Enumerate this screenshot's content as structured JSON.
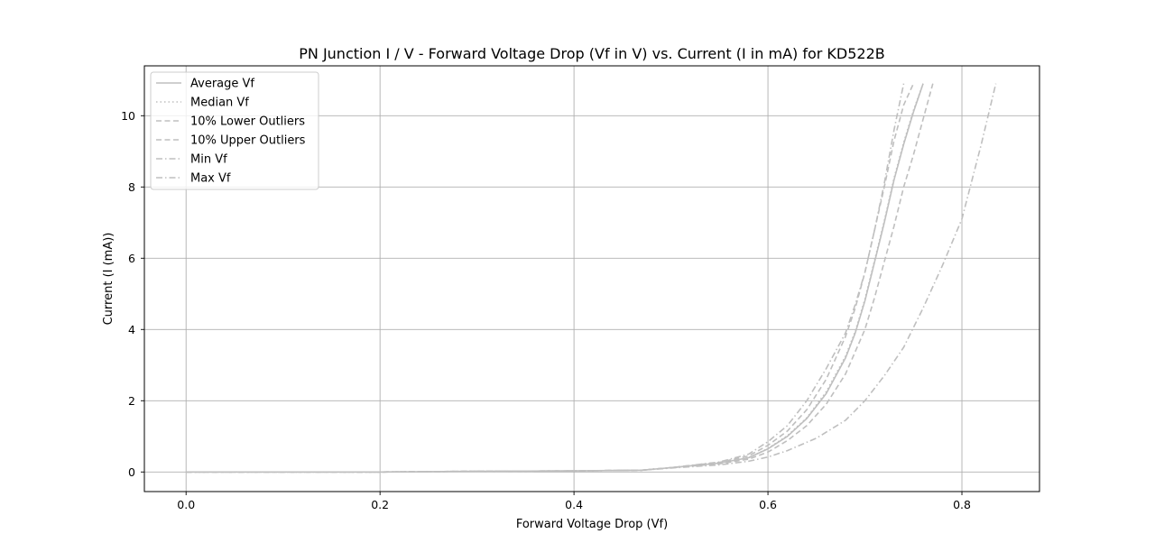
{
  "chart_data": {
    "type": "line",
    "title": "PN Junction I / V - Forward Voltage Drop (Vf in V) vs. Current (I in mA) for KD522B",
    "xlabel": "Forward Voltage Drop (Vf)",
    "ylabel": "Current (I (mA))",
    "xlim": [
      -0.043,
      0.88
    ],
    "ylim": [
      -0.55,
      11.4
    ],
    "xticks": [
      0.0,
      0.2,
      0.4,
      0.6,
      0.8
    ],
    "xtick_labels": [
      "0.0",
      "0.2",
      "0.4",
      "0.6",
      "0.8"
    ],
    "yticks": [
      0,
      2,
      4,
      6,
      8,
      10
    ],
    "ytick_labels": [
      "0",
      "2",
      "4",
      "6",
      "8",
      "10"
    ],
    "grid": true,
    "legend_position": "top-left",
    "line_color": "#bfbfbf",
    "series": [
      {
        "name": "Average Vf",
        "dash": "solid",
        "x": [
          0.0,
          0.1,
          0.2,
          0.3,
          0.4,
          0.47,
          0.5,
          0.55,
          0.58,
          0.6,
          0.62,
          0.64,
          0.66,
          0.68,
          0.69,
          0.7,
          0.71,
          0.72,
          0.73,
          0.74,
          0.75,
          0.76
        ],
        "y": [
          0.0,
          0.0,
          0.0,
          0.02,
          0.03,
          0.05,
          0.12,
          0.25,
          0.4,
          0.65,
          1.0,
          1.5,
          2.2,
          3.2,
          3.9,
          4.8,
          5.9,
          7.0,
          8.2,
          9.2,
          10.1,
          10.9
        ]
      },
      {
        "name": "Median Vf",
        "dash": "dotted",
        "x": [
          0.0,
          0.1,
          0.2,
          0.3,
          0.4,
          0.47,
          0.5,
          0.55,
          0.58,
          0.6,
          0.62,
          0.64,
          0.66,
          0.68,
          0.69,
          0.7,
          0.71,
          0.72,
          0.73,
          0.74,
          0.75,
          0.76
        ],
        "y": [
          0.0,
          0.0,
          0.0,
          0.02,
          0.03,
          0.05,
          0.12,
          0.25,
          0.4,
          0.66,
          1.02,
          1.52,
          2.25,
          3.25,
          3.95,
          4.85,
          5.95,
          7.05,
          8.25,
          9.25,
          10.15,
          10.9
        ]
      },
      {
        "name": "10% Lower Outliers",
        "dash": "dashed",
        "x": [
          0.0,
          0.1,
          0.2,
          0.3,
          0.4,
          0.47,
          0.5,
          0.55,
          0.58,
          0.6,
          0.62,
          0.64,
          0.66,
          0.68,
          0.69,
          0.7,
          0.71,
          0.72,
          0.73,
          0.74,
          0.75
        ],
        "y": [
          0.0,
          0.0,
          0.0,
          0.02,
          0.03,
          0.05,
          0.12,
          0.27,
          0.45,
          0.75,
          1.15,
          1.75,
          2.6,
          3.8,
          4.6,
          5.6,
          6.8,
          8.0,
          9.3,
          10.3,
          10.9
        ]
      },
      {
        "name": "10% Upper Outliers",
        "dash": "dashed",
        "x": [
          0.0,
          0.1,
          0.2,
          0.3,
          0.4,
          0.47,
          0.5,
          0.55,
          0.58,
          0.6,
          0.62,
          0.64,
          0.66,
          0.68,
          0.7,
          0.71,
          0.72,
          0.73,
          0.74,
          0.75,
          0.76,
          0.77
        ],
        "y": [
          0.0,
          0.0,
          0.0,
          0.02,
          0.03,
          0.05,
          0.12,
          0.23,
          0.36,
          0.56,
          0.88,
          1.3,
          1.9,
          2.75,
          4.0,
          4.9,
          5.9,
          6.9,
          8.0,
          8.9,
          9.9,
          10.9
        ]
      },
      {
        "name": "Min Vf",
        "dash": "dashdot",
        "x": [
          0.0,
          0.1,
          0.2,
          0.3,
          0.4,
          0.47,
          0.5,
          0.55,
          0.58,
          0.6,
          0.62,
          0.64,
          0.66,
          0.68,
          0.69,
          0.7,
          0.71,
          0.72,
          0.73,
          0.74
        ],
        "y": [
          0.0,
          0.0,
          0.0,
          0.02,
          0.03,
          0.05,
          0.12,
          0.28,
          0.5,
          0.85,
          1.3,
          2.0,
          2.9,
          3.9,
          4.7,
          5.6,
          6.8,
          8.1,
          9.6,
          10.9
        ]
      },
      {
        "name": "Max Vf",
        "dash": "dashdot",
        "x": [
          0.0,
          0.1,
          0.2,
          0.3,
          0.4,
          0.47,
          0.5,
          0.55,
          0.58,
          0.6,
          0.62,
          0.65,
          0.68,
          0.7,
          0.72,
          0.74,
          0.76,
          0.78,
          0.8,
          0.82,
          0.835
        ],
        "y": [
          0.0,
          0.0,
          0.0,
          0.02,
          0.03,
          0.05,
          0.11,
          0.2,
          0.3,
          0.42,
          0.6,
          0.95,
          1.45,
          2.0,
          2.7,
          3.5,
          4.6,
          5.8,
          7.1,
          9.2,
          10.9
        ]
      }
    ]
  }
}
